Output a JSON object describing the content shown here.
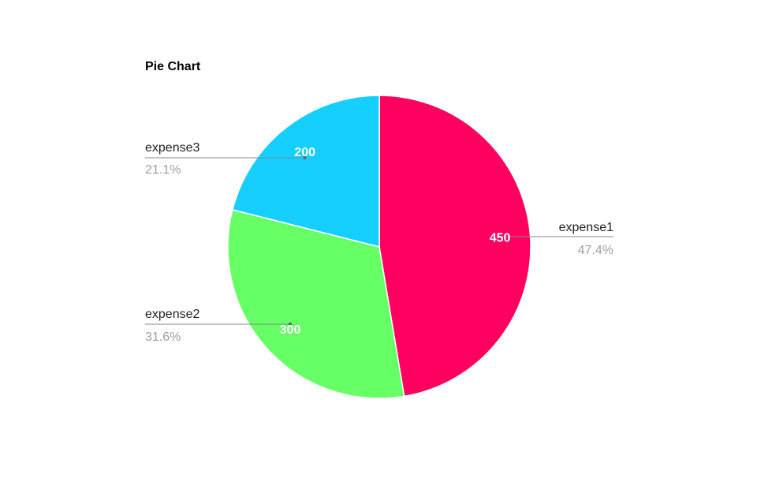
{
  "chart_data": {
    "type": "pie",
    "title": "Pie Chart",
    "slices": [
      {
        "name": "expense1",
        "value": 450,
        "value_label": "450",
        "percent_label": "47.4%",
        "color": "#ff0060"
      },
      {
        "name": "expense2",
        "value": 300,
        "value_label": "300",
        "percent_label": "31.6%",
        "color": "#66ff66"
      },
      {
        "name": "expense3",
        "value": 200,
        "value_label": "200",
        "percent_label": "21.1%",
        "color": "#14cfff"
      }
    ],
    "start_angle": "12 o'clock",
    "direction": "clockwise",
    "legend": "labels-beside-slices"
  }
}
